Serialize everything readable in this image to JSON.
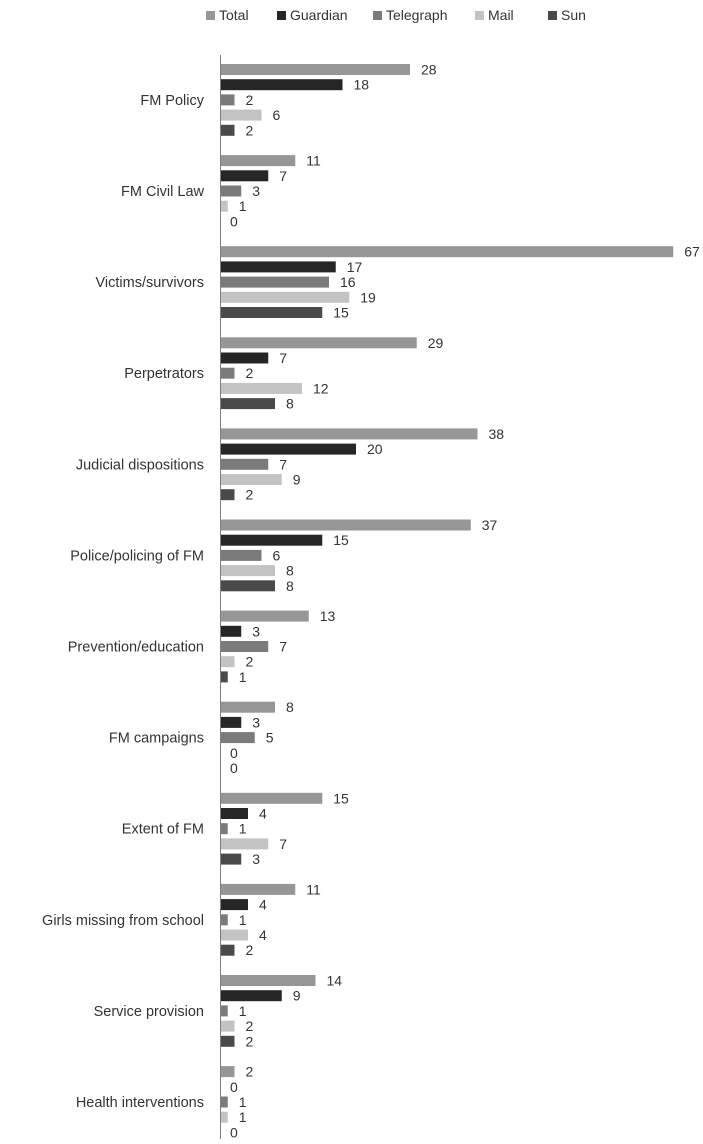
{
  "chart_data": {
    "type": "bar",
    "orientation": "horizontal",
    "categories": [
      "FM Policy",
      "FM Civil Law",
      "Victims/survivors",
      "Perpetrators",
      "Judicial dispositions",
      "Police/policing of FM",
      "Prevention/education",
      "FM campaigns",
      "Extent of FM",
      "Girls missing from school",
      "Service provision",
      "Health interventions"
    ],
    "series": [
      {
        "name": "Total",
        "color": "#969696",
        "values": [
          28,
          11,
          67,
          29,
          38,
          37,
          13,
          8,
          15,
          11,
          14,
          2
        ]
      },
      {
        "name": "Guardian",
        "color": "#262626",
        "values": [
          18,
          7,
          17,
          7,
          20,
          15,
          3,
          3,
          4,
          4,
          9,
          0
        ]
      },
      {
        "name": "Telegraph",
        "color": "#7b7b7b",
        "values": [
          2,
          3,
          16,
          2,
          7,
          6,
          7,
          5,
          1,
          1,
          1,
          1
        ]
      },
      {
        "name": "Mail",
        "color": "#c3c3c3",
        "values": [
          6,
          1,
          19,
          12,
          9,
          8,
          2,
          0,
          7,
          4,
          2,
          1
        ]
      },
      {
        "name": "Sun",
        "color": "#4a4a4a",
        "values": [
          2,
          0,
          15,
          8,
          2,
          8,
          1,
          0,
          3,
          2,
          2,
          0
        ]
      }
    ],
    "xlim": [
      0,
      67
    ],
    "legend_position": "top",
    "data_labels": true,
    "grid": false
  }
}
